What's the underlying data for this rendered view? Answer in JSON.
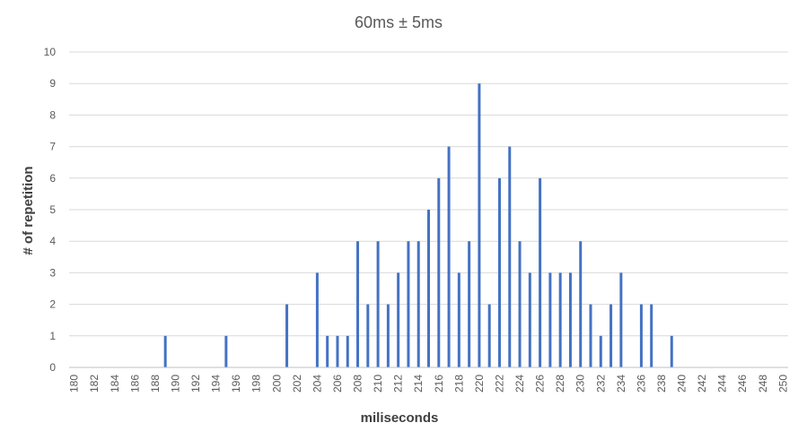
{
  "chart_data": {
    "type": "bar",
    "title": "60ms ± 5ms",
    "xlabel": "miliseconds",
    "ylabel": "# of repetition",
    "xlim": [
      180,
      250
    ],
    "ylim": [
      0,
      10
    ],
    "x_ticks": [
      180,
      182,
      184,
      186,
      188,
      190,
      192,
      194,
      196,
      198,
      200,
      202,
      204,
      206,
      208,
      210,
      212,
      214,
      216,
      218,
      220,
      222,
      224,
      226,
      228,
      230,
      232,
      234,
      236,
      238,
      240,
      242,
      244,
      246,
      248,
      250
    ],
    "y_ticks": [
      0,
      1,
      2,
      3,
      4,
      5,
      6,
      7,
      8,
      9,
      10
    ],
    "grid": true,
    "legend": "none",
    "bar_color": "#4472C4",
    "points": [
      {
        "x": 189,
        "y": 1
      },
      {
        "x": 195,
        "y": 1
      },
      {
        "x": 201,
        "y": 2
      },
      {
        "x": 204,
        "y": 3
      },
      {
        "x": 205,
        "y": 1
      },
      {
        "x": 206,
        "y": 1
      },
      {
        "x": 207,
        "y": 1
      },
      {
        "x": 208,
        "y": 4
      },
      {
        "x": 209,
        "y": 2
      },
      {
        "x": 210,
        "y": 4
      },
      {
        "x": 211,
        "y": 2
      },
      {
        "x": 212,
        "y": 3
      },
      {
        "x": 213,
        "y": 4
      },
      {
        "x": 214,
        "y": 4
      },
      {
        "x": 215,
        "y": 5
      },
      {
        "x": 216,
        "y": 6
      },
      {
        "x": 217,
        "y": 7
      },
      {
        "x": 218,
        "y": 3
      },
      {
        "x": 219,
        "y": 4
      },
      {
        "x": 220,
        "y": 9
      },
      {
        "x": 221,
        "y": 2
      },
      {
        "x": 222,
        "y": 6
      },
      {
        "x": 223,
        "y": 7
      },
      {
        "x": 224,
        "y": 4
      },
      {
        "x": 225,
        "y": 3
      },
      {
        "x": 226,
        "y": 6
      },
      {
        "x": 227,
        "y": 3
      },
      {
        "x": 228,
        "y": 3
      },
      {
        "x": 229,
        "y": 3
      },
      {
        "x": 230,
        "y": 4
      },
      {
        "x": 231,
        "y": 2
      },
      {
        "x": 232,
        "y": 1
      },
      {
        "x": 233,
        "y": 2
      },
      {
        "x": 234,
        "y": 3
      },
      {
        "x": 236,
        "y": 2
      },
      {
        "x": 237,
        "y": 2
      },
      {
        "x": 239,
        "y": 1
      }
    ]
  }
}
